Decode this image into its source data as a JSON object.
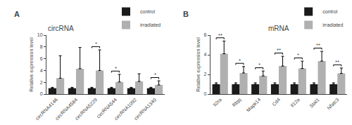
{
  "chart_data": [
    {
      "type": "bar",
      "title": "circRNA",
      "ylabel": "Relative expression level",
      "categories": [
        "circRNA4146",
        "circRNA4584",
        "circRNA5229",
        "circRNA544",
        "circRNA1092",
        "circRNA1340"
      ],
      "series": [
        {
          "name": "control",
          "color": "#1a1a1a",
          "values": [
            1.0,
            1.0,
            1.0,
            1.0,
            1.0,
            1.0
          ],
          "errors": [
            0.15,
            0.15,
            0.15,
            0.15,
            0.15,
            0.15
          ]
        },
        {
          "name": "irradiated",
          "color": "#b0b0b0",
          "values": [
            2.7,
            4.3,
            4.0,
            2.05,
            2.15,
            1.55
          ],
          "errors": [
            3.8,
            3.6,
            3.5,
            1.3,
            1.3,
            0.7
          ]
        }
      ],
      "ylim": [
        0,
        10
      ],
      "yticks": [
        0,
        2,
        4,
        6,
        8,
        10
      ],
      "grid": false,
      "legend": "upper right",
      "annotations": [
        {
          "text": "A"
        },
        {
          "category": "circRNA5229",
          "text": "*"
        },
        {
          "category": "circRNA544",
          "text": "*"
        },
        {
          "category": "circRNA1340",
          "text": "*"
        }
      ]
    },
    {
      "type": "bar",
      "title": "mRNA",
      "ylabel": "Relative expression level",
      "categories": [
        "Il2ra",
        "Rbpj",
        "Mapk14",
        "Cd4",
        "Il12a",
        "Stat1",
        "Nfatc3"
      ],
      "series": [
        {
          "name": "control",
          "color": "#1a1a1a",
          "values": [
            1.0,
            1.0,
            1.0,
            1.0,
            1.0,
            1.0,
            1.0
          ],
          "errors": [
            0.15,
            0.15,
            0.15,
            0.15,
            0.15,
            0.15,
            0.15
          ]
        },
        {
          "name": "irradiated",
          "color": "#b0b0b0",
          "values": [
            4.1,
            2.15,
            1.85,
            2.85,
            2.6,
            3.35,
            2.1
          ],
          "errors": [
            1.3,
            0.65,
            0.5,
            1.0,
            0.75,
            1.0,
            0.55
          ]
        }
      ],
      "ylim": [
        0,
        6
      ],
      "yticks": [
        0,
        2,
        4,
        6
      ],
      "grid": false,
      "legend": "upper right",
      "annotations": [
        {
          "text": "B"
        },
        {
          "category": "Il2ra",
          "text": "**"
        },
        {
          "category": "Rbpj",
          "text": "*"
        },
        {
          "category": "Mapk14",
          "text": "*"
        },
        {
          "category": "Cd4",
          "text": "**"
        },
        {
          "category": "Il12a",
          "text": "*"
        },
        {
          "category": "Stat1",
          "text": "**"
        },
        {
          "category": "Nfatc3",
          "text": "**"
        }
      ]
    }
  ]
}
